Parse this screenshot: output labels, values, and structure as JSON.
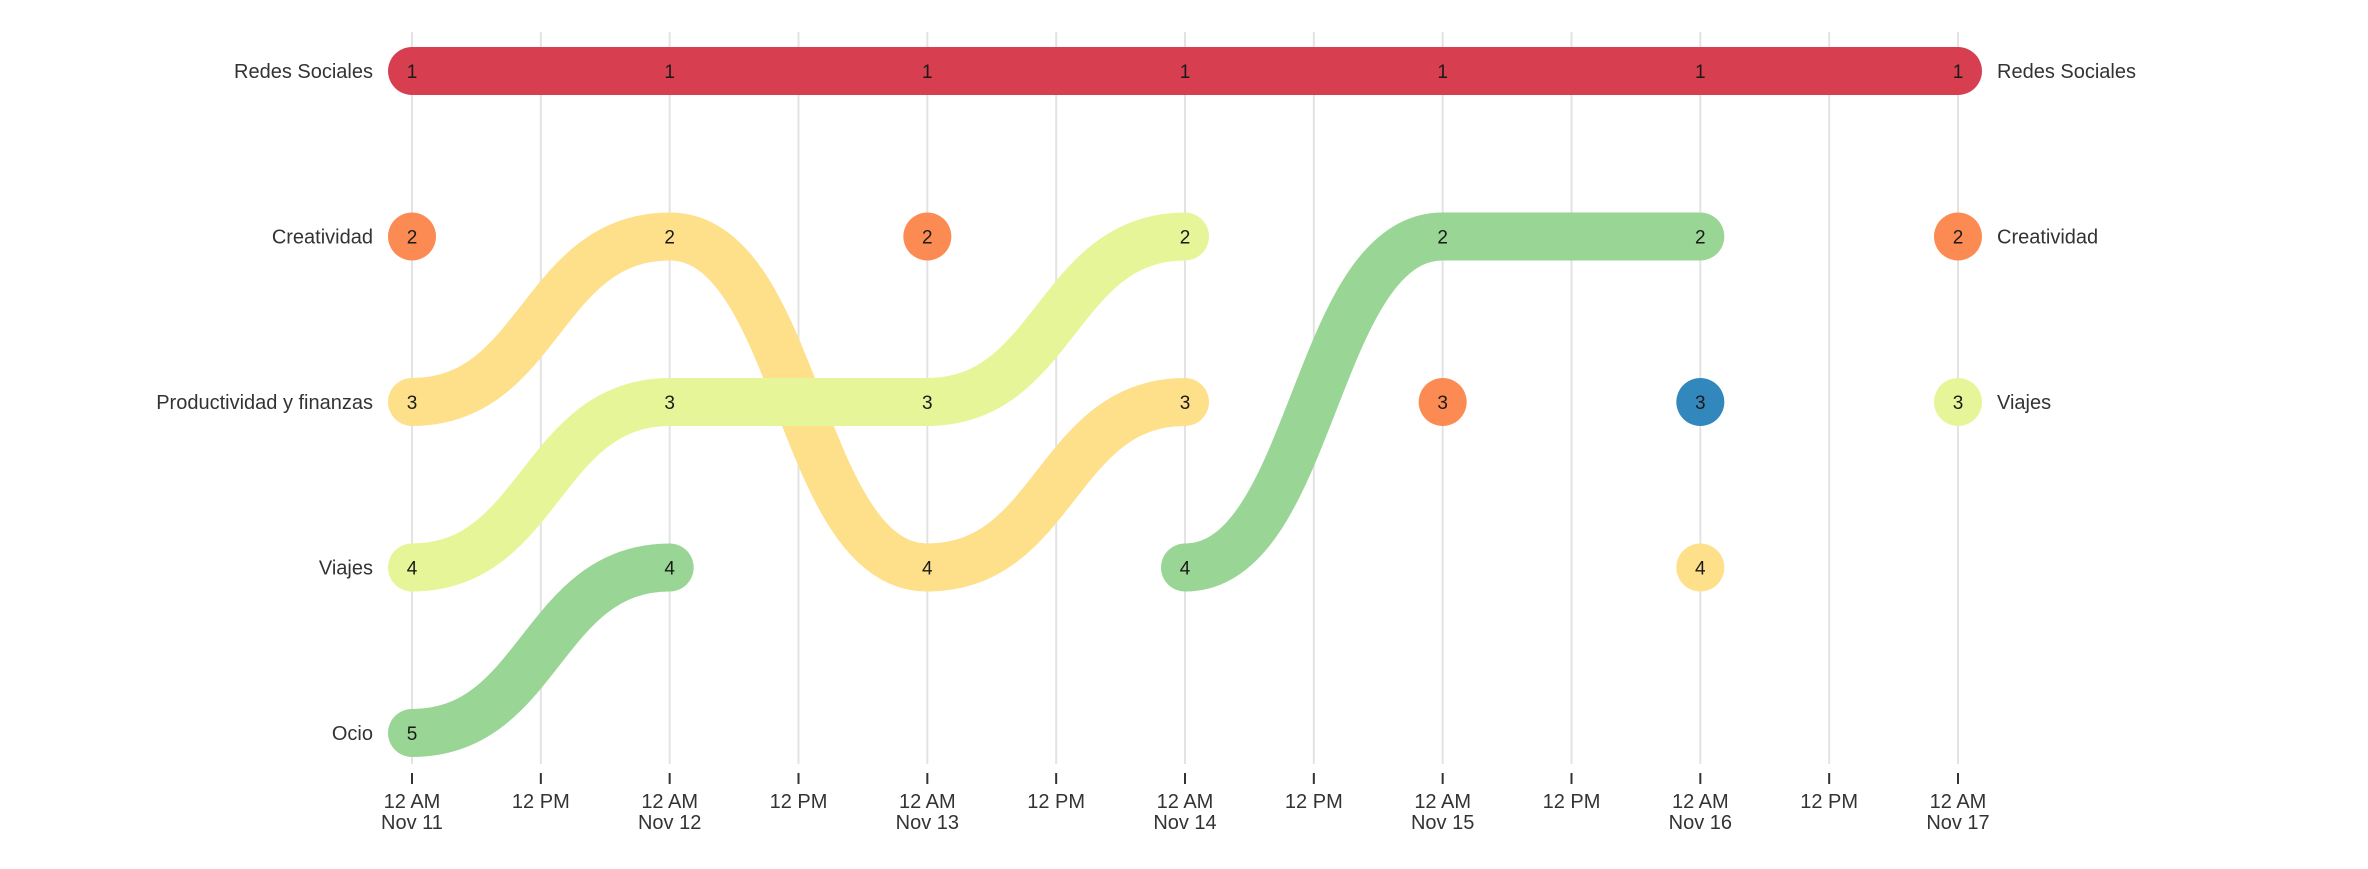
{
  "chart_data": {
    "type": "bump",
    "x_axis_ticks": [
      {
        "time": "2023-11-11 00:00",
        "line1": "12 AM",
        "line2": "Nov 11"
      },
      {
        "time": "2023-11-11 12:00",
        "line1": "12 PM",
        "line2": ""
      },
      {
        "time": "2023-11-12 00:00",
        "line1": "12 AM",
        "line2": "Nov 12"
      },
      {
        "time": "2023-11-12 12:00",
        "line1": "12 PM",
        "line2": ""
      },
      {
        "time": "2023-11-13 00:00",
        "line1": "12 AM",
        "line2": "Nov 13"
      },
      {
        "time": "2023-11-13 12:00",
        "line1": "12 PM",
        "line2": ""
      },
      {
        "time": "2023-11-14 00:00",
        "line1": "12 AM",
        "line2": "Nov 14"
      },
      {
        "time": "2023-11-14 12:00",
        "line1": "12 PM",
        "line2": ""
      },
      {
        "time": "2023-11-15 00:00",
        "line1": "12 AM",
        "line2": "Nov 15"
      },
      {
        "time": "2023-11-15 12:00",
        "line1": "12 PM",
        "line2": ""
      },
      {
        "time": "2023-11-16 00:00",
        "line1": "12 AM",
        "line2": "Nov 16"
      },
      {
        "time": "2023-11-16 12:00",
        "line1": "12 PM",
        "line2": ""
      },
      {
        "time": "2023-11-17 00:00",
        "line1": "12 AM",
        "line2": "Nov 17"
      }
    ],
    "x_range": [
      "2023-11-11",
      "2023-11-17"
    ],
    "y_ranks": [
      1,
      2,
      3,
      4,
      5
    ],
    "left_labels": [
      "Redes Sociales",
      "Creatividad",
      "Productividad y finanzas",
      "Viajes",
      "Ocio"
    ],
    "right_labels": [
      "Redes Sociales",
      "Creatividad",
      "Viajes"
    ],
    "grid": true,
    "series": [
      {
        "color": "#d73f50",
        "points": [
          {
            "x": "2023-11-11",
            "rank": 1
          },
          {
            "x": "2023-11-12",
            "rank": 1
          },
          {
            "x": "2023-11-13",
            "rank": 1
          },
          {
            "x": "2023-11-14",
            "rank": 1
          },
          {
            "x": "2023-11-15",
            "rank": 1
          },
          {
            "x": "2023-11-16",
            "rank": 1
          },
          {
            "x": "2023-11-17",
            "rank": 1
          }
        ]
      },
      {
        "color": "#fb8b52",
        "points": [
          {
            "x": "2023-11-11",
            "rank": 2
          }
        ]
      },
      {
        "color": "#fb8b52",
        "points": [
          {
            "x": "2023-11-13",
            "rank": 2
          }
        ]
      },
      {
        "color": "#fb8b52",
        "points": [
          {
            "x": "2023-11-15",
            "rank": 3
          }
        ]
      },
      {
        "color": "#fb8b52",
        "points": [
          {
            "x": "2023-11-17",
            "rank": 2
          }
        ]
      },
      {
        "color": "#fee08b",
        "points": [
          {
            "x": "2023-11-11",
            "rank": 3
          },
          {
            "x": "2023-11-12",
            "rank": 2
          },
          {
            "x": "2023-11-13",
            "rank": 4
          },
          {
            "x": "2023-11-14",
            "rank": 3
          }
        ]
      },
      {
        "color": "#fee08b",
        "points": [
          {
            "x": "2023-11-16",
            "rank": 4
          }
        ]
      },
      {
        "color": "#e6f598",
        "points": [
          {
            "x": "2023-11-11",
            "rank": 4
          },
          {
            "x": "2023-11-12",
            "rank": 3
          },
          {
            "x": "2023-11-13",
            "rank": 3
          },
          {
            "x": "2023-11-14",
            "rank": 2
          }
        ]
      },
      {
        "color": "#e6f598",
        "points": [
          {
            "x": "2023-11-17",
            "rank": 3
          }
        ]
      },
      {
        "color": "#99d594",
        "points": [
          {
            "x": "2023-11-11",
            "rank": 5
          },
          {
            "x": "2023-11-12",
            "rank": 4
          }
        ]
      },
      {
        "color": "#99d594",
        "points": [
          {
            "x": "2023-11-14",
            "rank": 4
          },
          {
            "x": "2023-11-15",
            "rank": 2
          },
          {
            "x": "2023-11-16",
            "rank": 2
          }
        ]
      },
      {
        "color": "#3288bd",
        "points": [
          {
            "x": "2023-11-16",
            "rank": 3
          }
        ]
      }
    ]
  }
}
